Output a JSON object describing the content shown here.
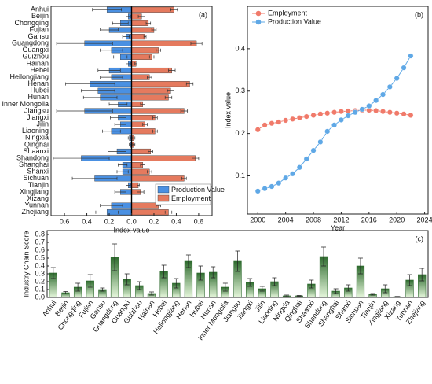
{
  "chart_data": [
    {
      "type": "bar",
      "orientation": "horizontal",
      "panel_label": "(a)",
      "x_label": "Index value",
      "categories": [
        "Anhui",
        "Beijin",
        "Chongqing",
        "Fujian",
        "Gansu",
        "Guangdong",
        "Guangxi",
        "Guizhou",
        "Hainan",
        "Hebei",
        "Heilongjiang",
        "Henan",
        "Hubei",
        "Hunan",
        "Inner Mongolia",
        "Jiangsu",
        "Jiangxi",
        "Jilin",
        "Liaoning",
        "Ningxia",
        "Qinghai",
        "Shaanxi",
        "Shandong",
        "Shanghai",
        "Shanxi",
        "Sichuan",
        "Tianjin",
        "Xingjiang",
        "Xizang",
        "Yunnan",
        "Zhejiang"
      ],
      "series": [
        {
          "name": "Production Value",
          "color": "#4a90e2",
          "values": [
            -0.22,
            -0.03,
            -0.1,
            -0.2,
            -0.05,
            -0.42,
            -0.18,
            -0.1,
            -0.03,
            -0.2,
            -0.18,
            -0.37,
            -0.3,
            -0.28,
            -0.12,
            -0.42,
            -0.12,
            -0.1,
            -0.18,
            -0.02,
            -0.01,
            -0.13,
            -0.45,
            -0.08,
            -0.08,
            -0.33,
            -0.03,
            -0.1,
            0,
            -0.18,
            -0.22
          ],
          "errors": [
            0.13,
            0.02,
            0.07,
            0.08,
            0.03,
            0.25,
            0.1,
            0.06,
            0.02,
            0.1,
            0.1,
            0.22,
            0.15,
            0.15,
            0.08,
            0.25,
            0.07,
            0.05,
            0.08,
            0.01,
            0.01,
            0.08,
            0.25,
            0.04,
            0.05,
            0.2,
            0.02,
            0.05,
            0,
            0.1,
            0.1
          ]
        },
        {
          "name": "Employment",
          "color": "#e57a5e",
          "values": [
            0.38,
            0.09,
            0.15,
            0.2,
            0.12,
            0.58,
            0.24,
            0.18,
            0.04,
            0.36,
            0.16,
            0.52,
            0.35,
            0.33,
            0.1,
            0.47,
            0.21,
            0.12,
            0.21,
            0.02,
            0.02,
            0.17,
            0.57,
            0.1,
            0.16,
            0.47,
            0.06,
            0.08,
            0,
            0.24,
            0.33
          ],
          "errors": [
            0.03,
            0.03,
            0.02,
            0.02,
            0.01,
            0.05,
            0.02,
            0.02,
            0.01,
            0.03,
            0.02,
            0.03,
            0.03,
            0.03,
            0.02,
            0.03,
            0.02,
            0.02,
            0.02,
            0.01,
            0.01,
            0.02,
            0.03,
            0.02,
            0.02,
            0.02,
            0.01,
            0.03,
            0,
            0.02,
            0.03
          ]
        }
      ],
      "xlim": [
        -0.72,
        0.72
      ],
      "xticks": [
        {
          "value": -0.6,
          "label": "0.6"
        },
        {
          "value": -0.4,
          "label": "0.4"
        },
        {
          "value": -0.2,
          "label": "0.2"
        },
        {
          "value": 0,
          "label": "0.0"
        },
        {
          "value": 0.2,
          "label": "0.2"
        },
        {
          "value": 0.4,
          "label": "0.4"
        },
        {
          "value": 0.6,
          "label": "0.6"
        }
      ],
      "legend": "lower right"
    },
    {
      "type": "line",
      "panel_label": "(b)",
      "x_label": "Year",
      "y_label": "Index value",
      "x": [
        2000,
        2001,
        2002,
        2003,
        2004,
        2005,
        2006,
        2007,
        2008,
        2009,
        2010,
        2011,
        2012,
        2013,
        2014,
        2015,
        2016,
        2017,
        2018,
        2019,
        2020,
        2021,
        2022
      ],
      "series": [
        {
          "name": "Employment",
          "color": "#f07a6a",
          "values": [
            0.209,
            0.22,
            0.224,
            0.227,
            0.231,
            0.234,
            0.237,
            0.24,
            0.243,
            0.246,
            0.248,
            0.25,
            0.252,
            0.253,
            0.254,
            0.255,
            0.255,
            0.254,
            0.252,
            0.25,
            0.248,
            0.246,
            0.243
          ]
        },
        {
          "name": "Production Value",
          "color": "#5fa8e6",
          "values": [
            0.064,
            0.07,
            0.075,
            0.083,
            0.095,
            0.105,
            0.12,
            0.14,
            0.16,
            0.18,
            0.205,
            0.22,
            0.232,
            0.242,
            0.25,
            0.257,
            0.265,
            0.278,
            0.292,
            0.31,
            0.33,
            0.355,
            0.383
          ]
        }
      ],
      "xlim": [
        1998.5,
        2024.5
      ],
      "xticks": [
        2000,
        2004,
        2008,
        2012,
        2016,
        2020,
        2024
      ],
      "ylim": [
        0.01,
        0.5
      ],
      "yticks": [
        0.1,
        0.2,
        0.3,
        0.4
      ],
      "legend": "upper left"
    },
    {
      "type": "bar",
      "orientation": "vertical",
      "panel_label": "(c)",
      "y_label": "Industry Chain Score",
      "categories": [
        "Anhui",
        "Beijin",
        "Chongqing",
        "Fujian",
        "Gansu",
        "Guangdong",
        "Guangxi",
        "Guizhou",
        "Hainan",
        "Hebei",
        "Heilongjiang",
        "Henan",
        "Hubei",
        "Hunan",
        "Inner Mongolia",
        "Jiangsu",
        "Jiangxi",
        "Jilin",
        "Liaoning",
        "Ningxia",
        "Qinghai",
        "Shaanxi",
        "Shandong",
        "Shanghai",
        "Shanxi",
        "Sichuan",
        "Tianjin",
        "Xingjiang",
        "Xizang",
        "Yunnan",
        "Zhejiang"
      ],
      "values": [
        0.31,
        0.06,
        0.13,
        0.21,
        0.1,
        0.51,
        0.23,
        0.15,
        0.05,
        0.33,
        0.18,
        0.46,
        0.31,
        0.32,
        0.13,
        0.46,
        0.19,
        0.11,
        0.2,
        0.02,
        0.02,
        0.17,
        0.52,
        0.08,
        0.12,
        0.4,
        0.04,
        0.11,
        0.01,
        0.22,
        0.29
      ],
      "errors": [
        0.07,
        0.015,
        0.05,
        0.08,
        0.02,
        0.17,
        0.07,
        0.05,
        0.02,
        0.08,
        0.06,
        0.08,
        0.09,
        0.07,
        0.05,
        0.13,
        0.05,
        0.03,
        0.05,
        0.01,
        0.005,
        0.05,
        0.12,
        0.03,
        0.04,
        0.1,
        0.01,
        0.05,
        0.003,
        0.07,
        0.08
      ],
      "color": "#2e6b2e",
      "ylim": [
        0,
        0.85
      ],
      "yticks": [
        {
          "value": 0,
          "label": "0.0"
        },
        {
          "value": 0.1,
          "label": "0.1"
        },
        {
          "value": 0.2,
          "label": "0.2"
        },
        {
          "value": 0.3,
          "label": "0.3"
        },
        {
          "value": 0.4,
          "label": "0.4"
        },
        {
          "value": 0.5,
          "label": "0.5"
        },
        {
          "value": 0.6,
          "label": "0.6"
        },
        {
          "value": 0.7,
          "label": "0.7"
        },
        {
          "value": 0.8,
          "label": "0.8"
        }
      ]
    }
  ]
}
